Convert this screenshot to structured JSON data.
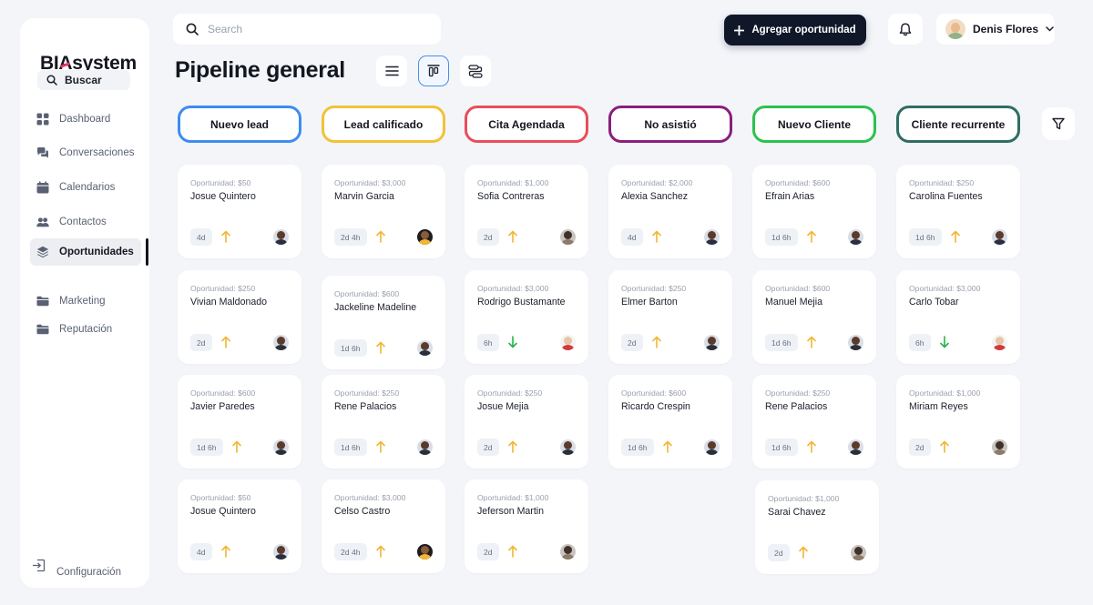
{
  "sidebar": {
    "logo_text": "BIAsystem",
    "logo_b": "B",
    "logo_i": "I",
    "logo_a": "A",
    "logo_rest": "system",
    "search_label": "Buscar",
    "items": [
      {
        "label": "Dashboard",
        "icon": "grid-icon"
      },
      {
        "label": "Conversaciones",
        "icon": "chat-icon"
      },
      {
        "label": "Calendarios",
        "icon": "calendar-icon"
      },
      {
        "label": "Contactos",
        "icon": "contacts-icon"
      },
      {
        "label": "Oportunidades",
        "icon": "layers-icon",
        "active": true
      },
      {
        "label": "Marketing",
        "icon": "folder-icon"
      },
      {
        "label": "Reputación",
        "icon": "folder-icon"
      }
    ],
    "config_label": "Configuración"
  },
  "topbar": {
    "search_placeholder": "Search",
    "add_label": "Agregar oportunidad",
    "user_name": "Denis Flores"
  },
  "page_title": "Pipeline general",
  "colors": {
    "dark": "#0f1729",
    "up_arrow": "#f2b632",
    "down_arrow": "#27b24a",
    "selected_view": "#4a8fe6"
  },
  "columns": [
    {
      "title": "Nuevo lead",
      "color": "#3d8cf0",
      "cards": [
        {
          "amount": "Oportunidad: $50",
          "name": "Josue Quintero",
          "time": "4d",
          "trend": "up",
          "avatar": "f1"
        },
        {
          "amount": "Oportunidad: $250",
          "name": "Vivian Maldonado",
          "time": "2d",
          "trend": "up",
          "avatar": "f1"
        },
        {
          "amount": "Oportunidad: $600",
          "name": "Javier Paredes",
          "time": "1d 6h",
          "trend": "up",
          "avatar": "f1"
        },
        {
          "amount": "Oportunidad: $50",
          "name": "Josue Quintero",
          "time": "4d",
          "trend": "up",
          "avatar": "f1"
        }
      ]
    },
    {
      "title": "Lead calificado",
      "color": "#f2c237",
      "cards": [
        {
          "amount": "Oportunidad: $3,000",
          "name": "Marvin Garcia",
          "time": "2d 4h",
          "trend": "up",
          "avatar": "f2"
        },
        {
          "amount": "Oportunidad: $600",
          "name": "Jackeline Madeline",
          "time": "1d 6h",
          "trend": "up",
          "avatar": "f1"
        },
        {
          "amount": "Oportunidad: $250",
          "name": "Rene Palacios",
          "time": "1d 6h",
          "trend": "up",
          "avatar": "f1"
        },
        {
          "amount": "Oportunidad: $3,000",
          "name": "Celso Castro",
          "time": "2d 4h",
          "trend": "up",
          "avatar": "f2"
        }
      ]
    },
    {
      "title": "Cita Agendada",
      "color": "#ea4d5c",
      "cards": [
        {
          "amount": "Oportunidad: $1,000",
          "name": "Sofia Contreras",
          "time": "2d",
          "trend": "up",
          "avatar": "f3"
        },
        {
          "amount": "Oportunidad: $3,000",
          "name": "Rodrigo Bustamante",
          "time": "6h",
          "trend": "down",
          "avatar": "f4"
        },
        {
          "amount": "Oportunidad: $250",
          "name": "Josue Mejia",
          "time": "2d",
          "trend": "up",
          "avatar": "f1"
        },
        {
          "amount": "Oportunidad: $1,000",
          "name": "Jeferson Martin",
          "time": "2d",
          "trend": "up",
          "avatar": "f3"
        }
      ]
    },
    {
      "title": "No asistió",
      "color": "#8a1f7d",
      "cards": [
        {
          "amount": "Oportunidad: $2,000",
          "name": "Alexia Sanchez",
          "time": "4d",
          "trend": "up",
          "avatar": "f1"
        },
        {
          "amount": "Oportunidad: $250",
          "name": "Elmer Barton",
          "time": "2d",
          "trend": "up",
          "avatar": "f1"
        },
        {
          "amount": "Oportunidad: $600",
          "name": "Ricardo Crespin",
          "time": "1d 6h",
          "trend": "up",
          "avatar": "f1"
        }
      ]
    },
    {
      "title": "Nuevo Cliente",
      "color": "#2bc24d",
      "cards": [
        {
          "amount": "Oportunidad: $600",
          "name": "Efrain Arias",
          "time": "1d 6h",
          "trend": "up",
          "avatar": "f1"
        },
        {
          "amount": "Oportunidad: $600",
          "name": "Manuel Mejia",
          "time": "1d 6h",
          "trend": "up",
          "avatar": "f1"
        },
        {
          "amount": "Oportunidad: $250",
          "name": "Rene Palacios",
          "time": "1d 6h",
          "trend": "up",
          "avatar": "f1"
        },
        {
          "amount": "Oportunidad: $1,000",
          "name": "Sarai Chavez",
          "time": "2d",
          "trend": "up",
          "avatar": "f3"
        }
      ]
    },
    {
      "title": "Cliente recurrente",
      "color": "#2e6e62",
      "cards": [
        {
          "amount": "Oportunidad: $250",
          "name": "Carolina Fuentes",
          "time": "1d 6h",
          "trend": "up",
          "avatar": "f1"
        },
        {
          "amount": "Oportunidad: $3,000",
          "name": "Carlo Tobar",
          "time": "6h",
          "trend": "down",
          "avatar": "f4"
        },
        {
          "amount": "Oportunidad: $1,000",
          "name": "Miriam Reyes",
          "time": "2d",
          "trend": "up",
          "avatar": "f3"
        }
      ]
    }
  ]
}
